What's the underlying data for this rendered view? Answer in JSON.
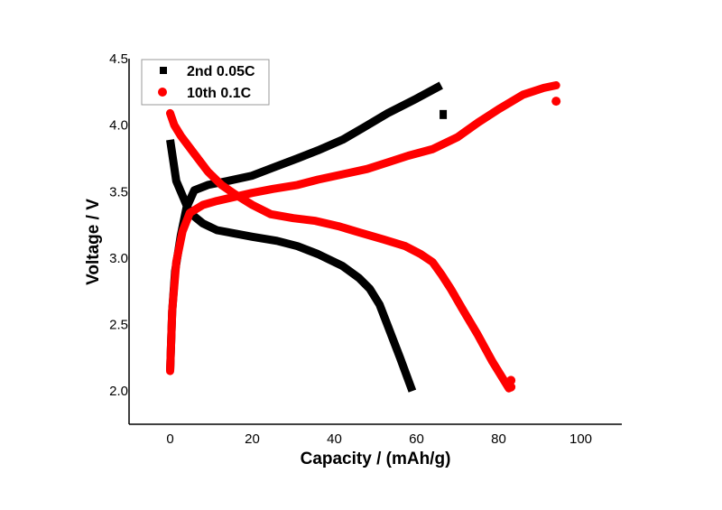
{
  "chart_data": {
    "type": "line",
    "title": "",
    "xlabel": "Capacity / (mAh/g)",
    "ylabel": "Voltage / V",
    "xlim": [
      -10,
      110
    ],
    "ylim": [
      1.75,
      4.5
    ],
    "xticks": [
      0,
      20,
      40,
      60,
      80,
      100
    ],
    "xtick_labels": [
      "0",
      "20",
      "40",
      "60",
      "80",
      "100"
    ],
    "yticks": [
      2.0,
      2.5,
      3.0,
      3.5,
      4.0,
      4.5
    ],
    "ytick_labels": [
      "2.0",
      "2.5",
      "3.0",
      "3.5",
      "4.0",
      "4.5"
    ],
    "grid": false,
    "legend_position": "top-left",
    "series": [
      {
        "name": "2nd 0.05C",
        "color": "#000000",
        "marker": "square",
        "segments": [
          {
            "label": "charge",
            "points": [
              [
                0,
                2.15
              ],
              [
                0.5,
                2.6
              ],
              [
                1.2,
                2.9
              ],
              [
                2.6,
                3.17
              ],
              [
                4.0,
                3.38
              ],
              [
                5.9,
                3.51
              ],
              [
                9.2,
                3.55
              ],
              [
                14,
                3.58
              ],
              [
                20,
                3.62
              ],
              [
                25,
                3.68
              ],
              [
                31,
                3.75
              ],
              [
                36,
                3.81
              ],
              [
                42,
                3.89
              ],
              [
                47,
                3.98
              ],
              [
                53,
                4.09
              ],
              [
                60,
                4.2
              ],
              [
                66,
                4.3
              ]
            ]
          },
          {
            "label": "discharge",
            "points": [
              [
                0,
                3.89
              ],
              [
                1.5,
                3.58
              ],
              [
                4.8,
                3.34
              ],
              [
                8.0,
                3.26
              ],
              [
                11.4,
                3.21
              ],
              [
                20,
                3.16
              ],
              [
                26,
                3.13
              ],
              [
                31,
                3.09
              ],
              [
                36,
                3.03
              ],
              [
                42,
                2.94
              ],
              [
                46,
                2.85
              ],
              [
                48.6,
                2.77
              ],
              [
                51,
                2.65
              ],
              [
                53,
                2.49
              ],
              [
                56,
                2.25
              ],
              [
                59,
                2.0
              ]
            ]
          }
        ],
        "isolated_points": [
          [
            66.5,
            4.08
          ]
        ]
      },
      {
        "name": "10th 0.1C",
        "color": "#ff0000",
        "marker": "circle",
        "segments": [
          {
            "label": "charge",
            "points": [
              [
                0,
                2.15
              ],
              [
                0.5,
                2.6
              ],
              [
                1.5,
                2.97
              ],
              [
                3.0,
                3.2
              ],
              [
                4.8,
                3.34
              ],
              [
                8,
                3.4
              ],
              [
                11.4,
                3.43
              ],
              [
                20,
                3.49
              ],
              [
                25,
                3.52
              ],
              [
                31,
                3.55
              ],
              [
                36,
                3.59
              ],
              [
                42,
                3.63
              ],
              [
                48,
                3.67
              ],
              [
                53,
                3.72
              ],
              [
                58,
                3.77
              ],
              [
                64,
                3.82
              ],
              [
                70,
                3.91
              ],
              [
                75,
                4.02
              ],
              [
                80,
                4.12
              ],
              [
                86,
                4.23
              ],
              [
                91,
                4.28
              ],
              [
                94,
                4.3
              ]
            ]
          },
          {
            "label": "discharge",
            "points": [
              [
                0,
                4.09
              ],
              [
                1.0,
                4.0
              ],
              [
                2.6,
                3.92
              ],
              [
                6,
                3.78
              ],
              [
                9.2,
                3.65
              ],
              [
                12.5,
                3.55
              ],
              [
                15.8,
                3.48
              ],
              [
                20,
                3.4
              ],
              [
                24.5,
                3.33
              ],
              [
                30,
                3.3
              ],
              [
                35.4,
                3.28
              ],
              [
                41,
                3.24
              ],
              [
                46.4,
                3.19
              ],
              [
                52,
                3.14
              ],
              [
                57.3,
                3.09
              ],
              [
                61,
                3.03
              ],
              [
                63.9,
                2.97
              ],
              [
                66,
                2.88
              ],
              [
                68.3,
                2.77
              ],
              [
                71.5,
                2.6
              ],
              [
                74.8,
                2.43
              ],
              [
                78.5,
                2.22
              ],
              [
                82.5,
                2.02
              ]
            ]
          }
        ],
        "isolated_points": [
          [
            94,
            4.18
          ],
          [
            83,
            2.08
          ],
          [
            83,
            2.03
          ]
        ]
      }
    ]
  }
}
